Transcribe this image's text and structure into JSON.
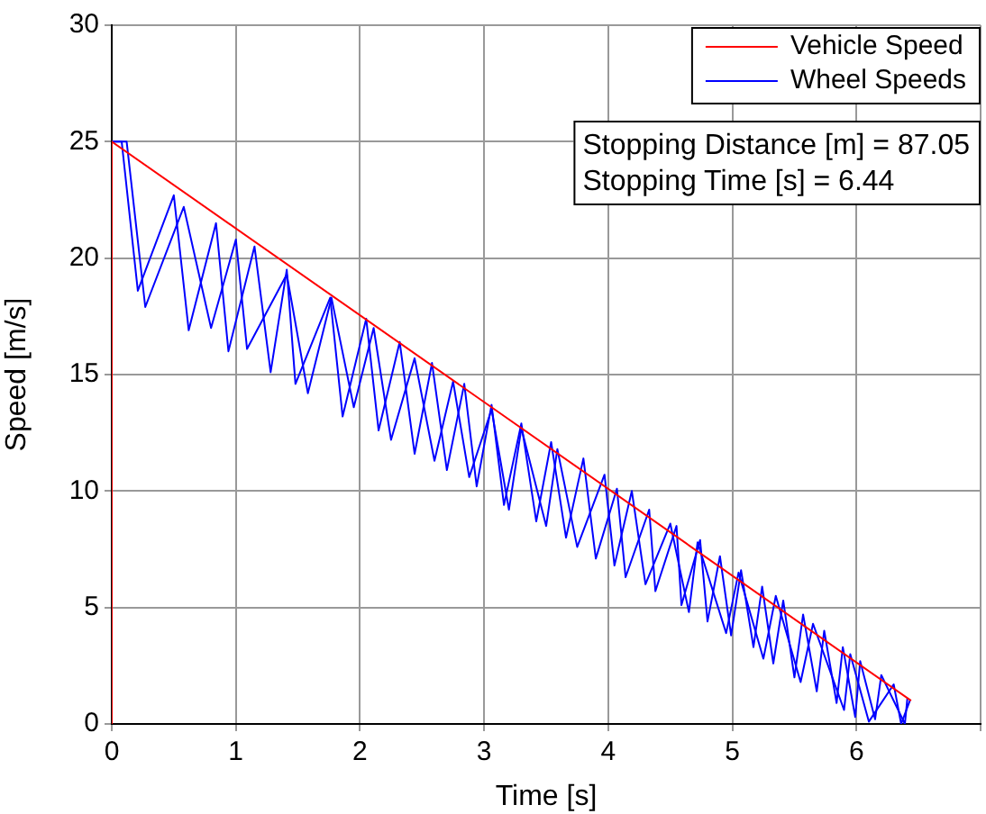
{
  "chart_data": {
    "type": "line",
    "xlabel": "Time [s]",
    "ylabel": "Speed [m/s]",
    "xlim": [
      0,
      7
    ],
    "xticks": [
      0,
      1,
      2,
      3,
      4,
      5,
      6,
      {
        "value": 7,
        "label": null
      }
    ],
    "ylim": [
      0,
      30
    ],
    "yticks": [
      0,
      5,
      10,
      15,
      20,
      25,
      30
    ],
    "grid": true,
    "legend": "top right",
    "marker": "none",
    "line_style": "solid",
    "annotations": [
      "Stopping Distance [m] = 87.05",
      "Stopping Time [s] = 6.44"
    ],
    "series": [
      {
        "name": "Vehicle Speed",
        "color": "#ff0000",
        "x": [
          0,
          0,
          6.44
        ],
        "values": [
          0,
          25,
          1.0
        ]
      },
      {
        "name": "Wheel Speeds",
        "color": "#0000ff",
        "x": [
          0,
          0.08,
          0.21,
          0.5,
          0.62,
          0.84,
          0.94,
          1.15,
          1.28,
          1.41,
          1.48,
          1.76,
          1.86,
          2.05,
          2.15,
          2.32,
          2.44,
          2.58,
          2.7,
          2.84,
          2.94,
          3.06,
          3.16,
          3.3,
          3.42,
          3.54,
          3.66,
          3.8,
          3.9,
          4.07,
          4.14,
          4.33,
          4.38,
          4.55,
          4.59,
          4.74,
          4.8,
          4.9,
          4.99,
          5.07,
          5.17,
          5.24,
          5.33,
          5.41,
          5.5,
          5.57,
          5.68,
          5.74,
          5.84,
          5.89,
          5.99,
          6.03,
          6.15,
          6.2,
          6.39,
          6.41
        ],
        "values": [
          25,
          25.0,
          18.6,
          22.7,
          16.9,
          21.5,
          16.0,
          20.5,
          15.1,
          19.5,
          14.6,
          18.3,
          13.2,
          17.4,
          12.6,
          16.4,
          11.6,
          15.5,
          10.9,
          14.6,
          10.2,
          13.7,
          9.4,
          12.9,
          8.7,
          12.1,
          8.0,
          11.4,
          7.1,
          10.1,
          6.3,
          9.2,
          5.7,
          8.5,
          5.1,
          7.9,
          4.4,
          7.2,
          3.8,
          6.6,
          3.3,
          5.9,
          2.6,
          5.3,
          2.0,
          4.7,
          1.4,
          4.0,
          0.9,
          3.3,
          0.3,
          2.7,
          0.2,
          2.1,
          0.0,
          1.1
        ]
      },
      {
        "color": "#0000ff",
        "x": [
          0,
          0.12,
          0.27,
          0.58,
          0.8,
          1.0,
          1.09,
          1.41,
          1.58,
          1.77,
          1.95,
          2.11,
          2.25,
          2.44,
          2.6,
          2.75,
          2.88,
          3.06,
          3.2,
          3.3,
          3.5,
          3.59,
          3.75,
          3.97,
          4.05,
          4.19,
          4.3,
          4.5,
          4.65,
          4.72,
          4.95,
          5.05,
          5.25,
          5.35,
          5.55,
          5.65,
          5.9,
          5.95,
          6.1,
          6.3,
          6.36,
          6.43
        ],
        "values": [
          25,
          25,
          17.9,
          22.2,
          17.0,
          20.8,
          16.1,
          19.3,
          14.2,
          18.3,
          13.6,
          17.0,
          12.2,
          15.7,
          11.3,
          14.7,
          10.6,
          13.5,
          9.2,
          12.7,
          8.5,
          11.8,
          7.6,
          10.7,
          6.8,
          10.0,
          6.0,
          8.6,
          4.8,
          7.8,
          3.9,
          6.5,
          2.8,
          5.5,
          1.8,
          4.3,
          0.6,
          3.0,
          0.1,
          1.7,
          0.0,
          1.0
        ]
      }
    ]
  }
}
